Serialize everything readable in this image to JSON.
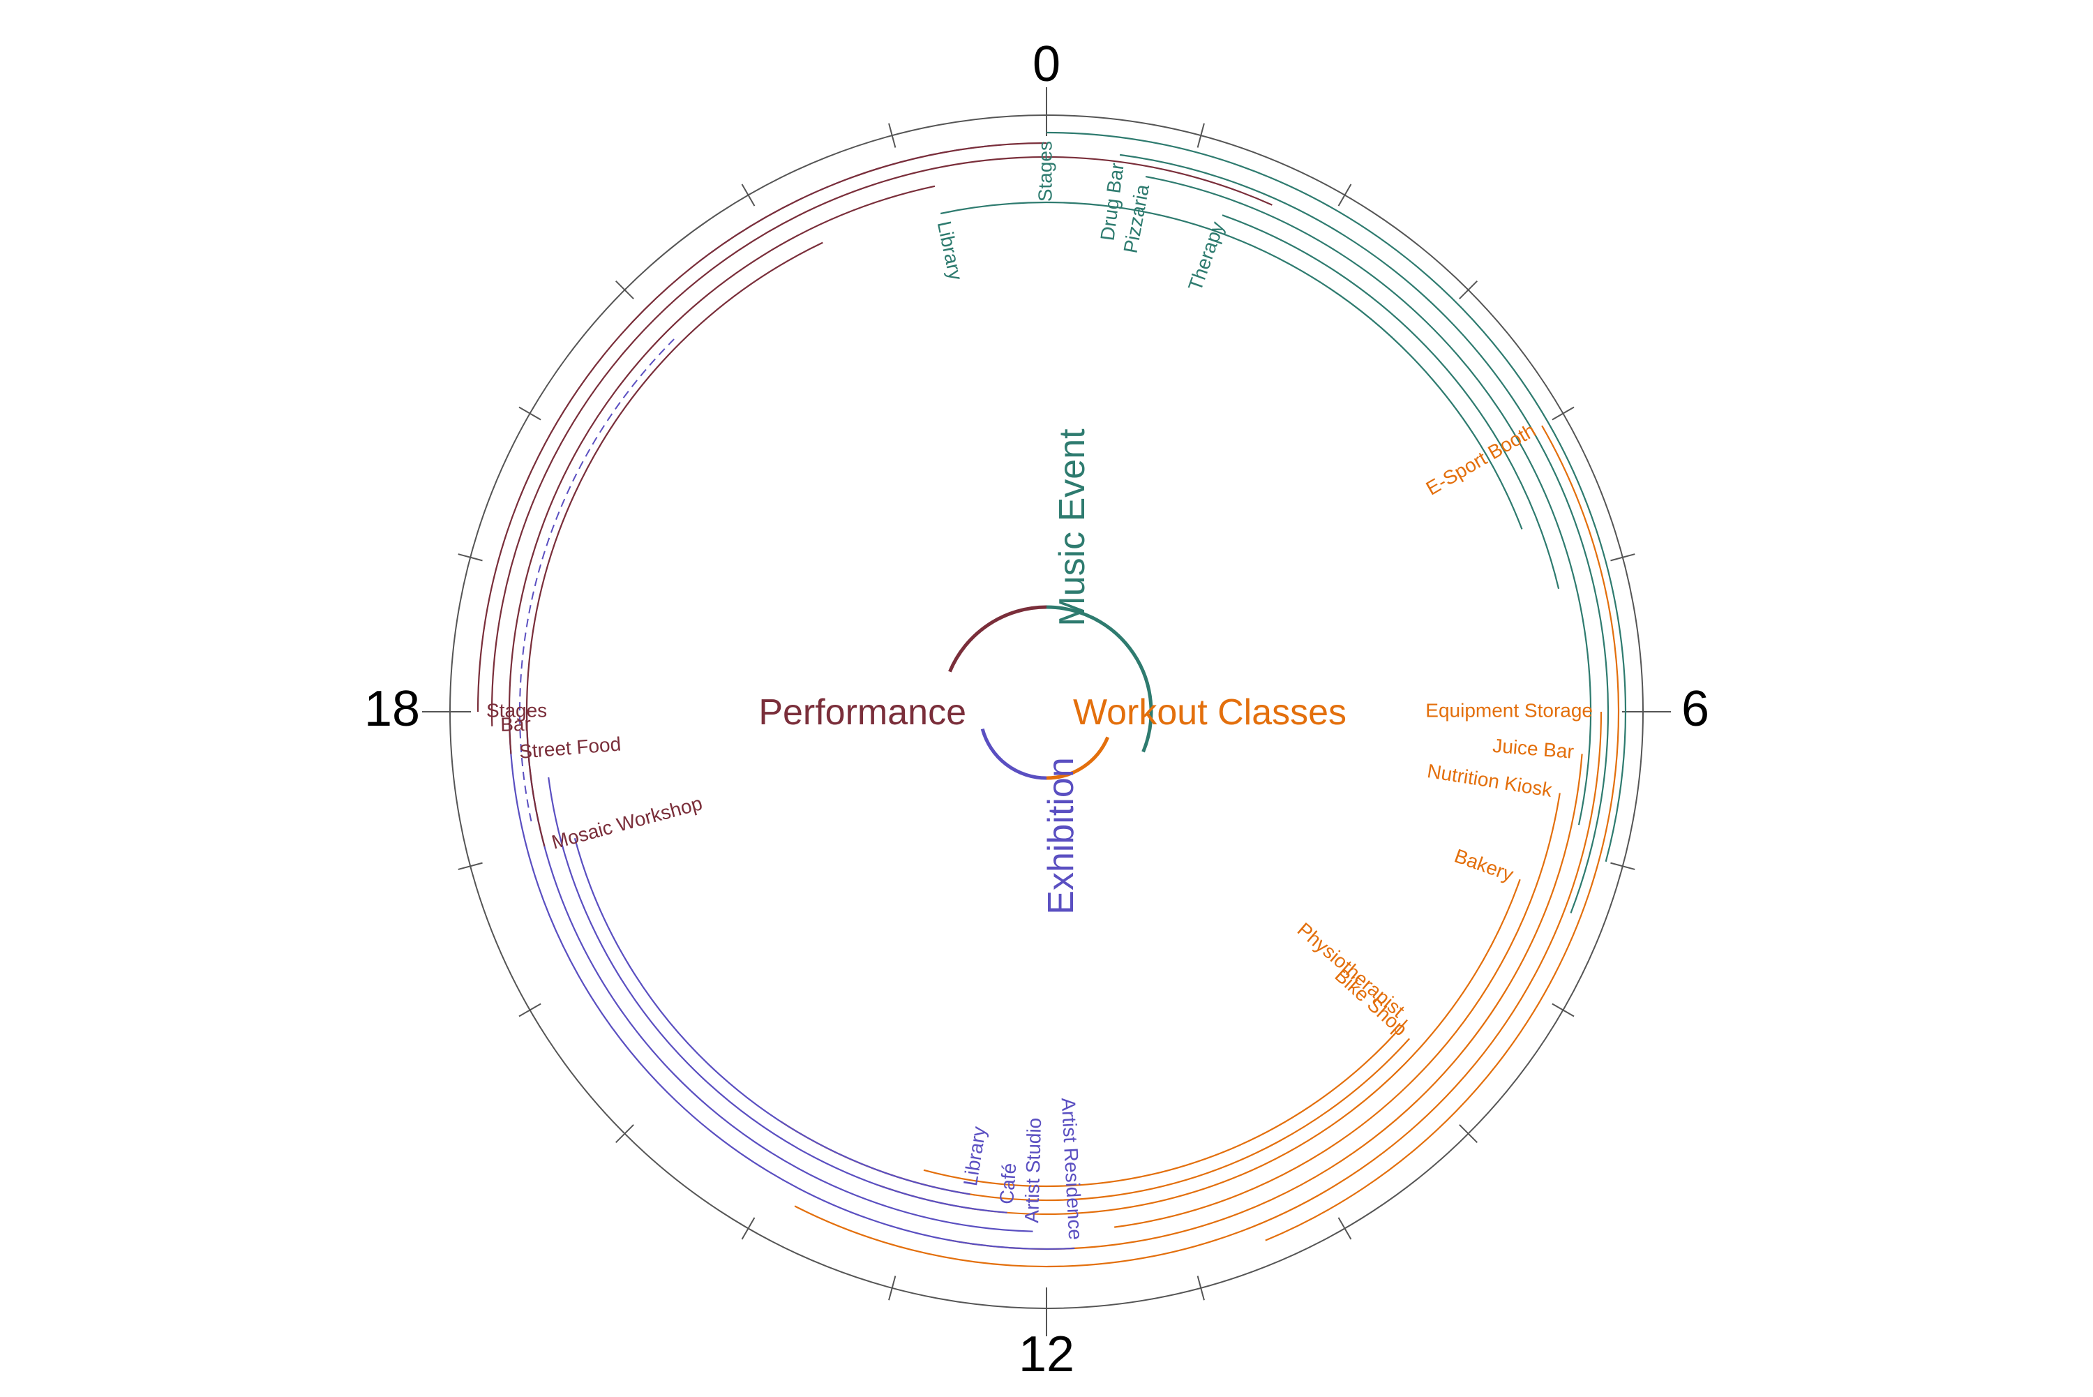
{
  "colors": {
    "music_event": "#2e7b6f",
    "workout_classes": "#e36f0c",
    "performance": "#7a2e3a",
    "exhibition": "#5a4fc1",
    "frame": "#555555"
  },
  "hour_labels": [
    "0",
    "6",
    "12",
    "18"
  ],
  "categories": [
    {
      "key": "music_event",
      "label": "Music Event"
    },
    {
      "key": "workout_classes",
      "label": "Workout Classes"
    },
    {
      "key": "exhibition",
      "label": "Exhibition"
    },
    {
      "key": "performance",
      "label": "Performance"
    }
  ],
  "venues": [
    {
      "label": "Stages",
      "category": "music_event",
      "start_hour": 0.0,
      "end_hour": 7.0
    },
    {
      "label": "Drug Bar",
      "category": "music_event",
      "start_hour": 0.5,
      "end_hour": 7.4
    },
    {
      "label": "Pizzaria",
      "category": "music_event",
      "start_hour": 0.7,
      "end_hour": 6.8
    },
    {
      "label": "Therapy",
      "category": "music_event",
      "start_hour": 1.3,
      "end_hour": 5.1
    },
    {
      "label": "Library",
      "category": "music_event",
      "start_hour": 23.2,
      "end_hour": 4.6
    },
    {
      "label": "E-Sport Booth",
      "category": "workout_classes",
      "start_hour": 4.0,
      "end_hour": 10.5
    },
    {
      "label": "Equipment Storage",
      "category": "workout_classes",
      "start_hour": 6.0,
      "end_hour": 13.8
    },
    {
      "label": "Juice Bar",
      "category": "workout_classes",
      "start_hour": 6.3,
      "end_hour": 12.7
    },
    {
      "label": "Nutrition Kiosk",
      "category": "workout_classes",
      "start_hour": 6.6,
      "end_hour": 11.5
    },
    {
      "label": "Bakery",
      "category": "workout_classes",
      "start_hour": 7.3,
      "end_hour": 13.3
    },
    {
      "label": "Bike Shop",
      "category": "workout_classes",
      "start_hour": 8.8,
      "end_hour": 14.2
    },
    {
      "label": "Physiotherapist",
      "category": "workout_classes",
      "start_hour": 8.7,
      "end_hour": 13.0
    },
    {
      "label": "Library",
      "category": "exhibition",
      "start_hour": 12.6,
      "end_hour": 17.0
    },
    {
      "label": "Café",
      "category": "exhibition",
      "start_hour": 12.3,
      "end_hour": 17.5
    },
    {
      "label": "Artist Studio",
      "category": "exhibition",
      "start_hour": 12.1,
      "end_hour": 18.0
    },
    {
      "label": "Artist Residence",
      "category": "exhibition",
      "start_hour": 11.8,
      "end_hour": 18.0
    },
    {
      "label": "Mosaic Workshop",
      "category": "performance",
      "start_hour": 17.0,
      "end_hour": 22.3
    },
    {
      "label": "Street Food",
      "category": "performance",
      "start_hour": 17.7,
      "end_hour": 23.2
    },
    {
      "label": "Bar",
      "category": "performance",
      "start_hour": 17.9,
      "end_hour": 1.6
    },
    {
      "label": "Stages",
      "category": "performance",
      "start_hour": 18.0,
      "end_hour": 0.0
    }
  ],
  "dashed_links": [
    {
      "category": "exhibition",
      "start_hour": 21.5,
      "end_hour": 23.7
    },
    {
      "category": "exhibition",
      "start_hour": 17.2,
      "end_hour": 21.0
    }
  ]
}
